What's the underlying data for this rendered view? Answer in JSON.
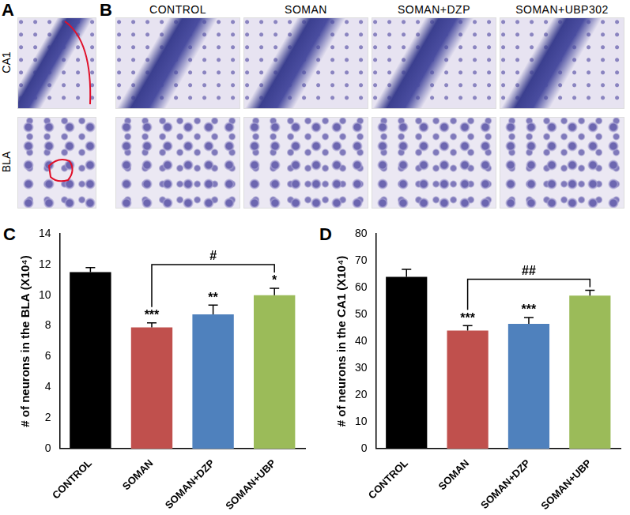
{
  "panels": {
    "A": {
      "label": "A",
      "rows": [
        "CA1",
        "BLA"
      ]
    },
    "B": {
      "label": "B",
      "columns": [
        "CONTROL",
        "SOMAN",
        "SOMAN+DZP",
        "SOMAN+UBP302"
      ]
    }
  },
  "chart_data": [
    {
      "panel": "C",
      "type": "bar",
      "y_label": "# of neurons in the BLA (X10⁴)",
      "categories": [
        "CONTROL",
        "SOMAN",
        "SOMAN+DZP",
        "SOMAN+UBP"
      ],
      "values": [
        11.5,
        7.9,
        8.75,
        10.0
      ],
      "errors": [
        0.3,
        0.3,
        0.6,
        0.45
      ],
      "colors": [
        "#000000",
        "#c0504d",
        "#4f81bd",
        "#9bbb59"
      ],
      "ylim": [
        0,
        14
      ],
      "yticks": [
        0,
        2,
        4,
        6,
        8,
        10,
        12,
        14
      ],
      "grid": false,
      "significance": [
        null,
        "***",
        "**",
        "*"
      ],
      "comparisons": [
        {
          "from": "SOMAN",
          "to": "SOMAN+UBP",
          "label": "#"
        }
      ]
    },
    {
      "panel": "D",
      "type": "bar",
      "y_label": "# of neurons in the CA1 (X10⁴)",
      "categories": [
        "CONTROL",
        "SOMAN",
        "SOMAN+DZP",
        "SOMAN+UBP"
      ],
      "values": [
        64,
        44,
        46.5,
        57
      ],
      "errors": [
        2.8,
        1.8,
        2.3,
        2.0
      ],
      "colors": [
        "#000000",
        "#c0504d",
        "#4f81bd",
        "#9bbb59"
      ],
      "ylim": [
        0,
        80
      ],
      "yticks": [
        0,
        10,
        20,
        30,
        40,
        50,
        60,
        70,
        80
      ],
      "grid": false,
      "significance": [
        null,
        "***",
        "***",
        null
      ],
      "comparisons": [
        {
          "from": "SOMAN",
          "to": "SOMAN+UBP",
          "label": "##"
        }
      ]
    }
  ]
}
